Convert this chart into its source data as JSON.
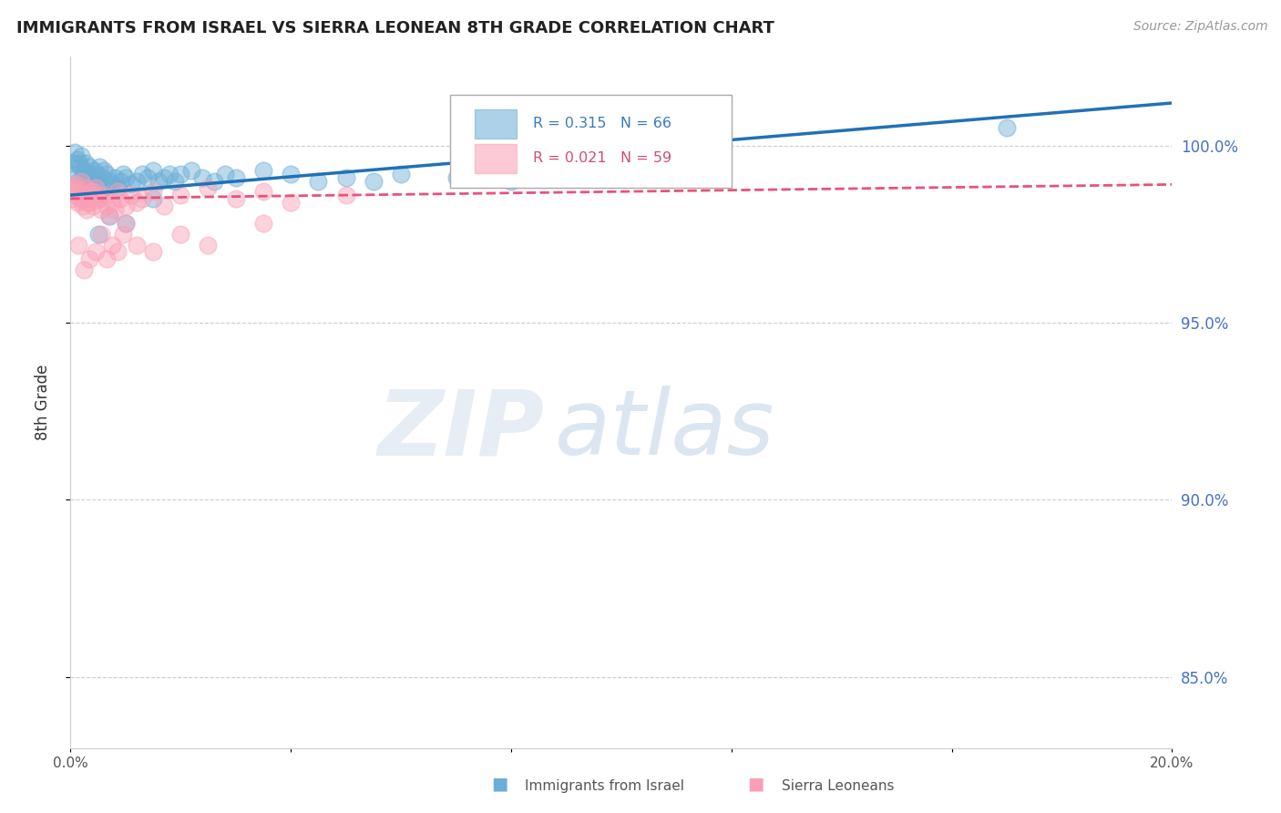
{
  "title": "IMMIGRANTS FROM ISRAEL VS SIERRA LEONEAN 8TH GRADE CORRELATION CHART",
  "source": "Source: ZipAtlas.com",
  "ylabel": "8th Grade",
  "right_yticks": [
    85.0,
    90.0,
    95.0,
    100.0
  ],
  "xlim": [
    0.0,
    20.0
  ],
  "ylim": [
    83.0,
    102.5
  ],
  "legend_blue_label": "Immigrants from Israel",
  "legend_pink_label": "Sierra Leoneans",
  "R_blue": 0.315,
  "N_blue": 66,
  "R_pink": 0.021,
  "N_pink": 59,
  "blue_color": "#6baed6",
  "pink_color": "#fa9fb5",
  "trend_blue_color": "#2171b5",
  "trend_pink_color": "#e8527a",
  "watermark_zip": "ZIP",
  "watermark_atlas": "atlas",
  "blue_scatter_x": [
    0.05,
    0.08,
    0.1,
    0.12,
    0.15,
    0.18,
    0.2,
    0.22,
    0.25,
    0.28,
    0.3,
    0.32,
    0.35,
    0.38,
    0.4,
    0.42,
    0.45,
    0.48,
    0.5,
    0.52,
    0.55,
    0.58,
    0.6,
    0.62,
    0.65,
    0.7,
    0.75,
    0.8,
    0.85,
    0.9,
    0.95,
    1.0,
    1.1,
    1.2,
    1.3,
    1.4,
    1.5,
    1.6,
    1.7,
    1.8,
    1.9,
    2.0,
    2.2,
    2.4,
    2.6,
    2.8,
    3.0,
    3.5,
    4.0,
    4.5,
    5.0,
    5.5,
    6.0,
    7.0,
    8.0,
    9.0,
    10.0,
    11.0,
    17.0,
    0.15,
    0.25,
    0.35,
    0.5,
    0.7,
    1.0,
    1.5
  ],
  "blue_scatter_y": [
    99.5,
    99.8,
    99.2,
    99.6,
    99.0,
    99.4,
    99.7,
    99.1,
    99.3,
    99.5,
    99.0,
    99.2,
    99.4,
    98.8,
    99.1,
    99.3,
    98.9,
    99.2,
    99.0,
    99.4,
    98.7,
    99.1,
    99.3,
    98.8,
    99.2,
    99.0,
    98.9,
    99.1,
    98.8,
    99.0,
    99.2,
    99.1,
    98.9,
    99.0,
    99.2,
    99.1,
    99.3,
    99.0,
    99.1,
    99.2,
    99.0,
    99.2,
    99.3,
    99.1,
    99.0,
    99.2,
    99.1,
    99.3,
    99.2,
    99.0,
    99.1,
    99.0,
    99.2,
    99.1,
    99.0,
    99.2,
    99.1,
    99.3,
    100.5,
    99.5,
    99.0,
    99.2,
    97.5,
    98.0,
    97.8,
    98.5
  ],
  "pink_scatter_x": [
    0.02,
    0.05,
    0.08,
    0.1,
    0.12,
    0.15,
    0.18,
    0.2,
    0.22,
    0.25,
    0.28,
    0.3,
    0.32,
    0.35,
    0.38,
    0.4,
    0.42,
    0.45,
    0.5,
    0.55,
    0.6,
    0.65,
    0.7,
    0.75,
    0.8,
    0.85,
    0.9,
    1.0,
    1.1,
    1.2,
    1.3,
    1.5,
    1.7,
    2.0,
    2.5,
    3.0,
    3.5,
    4.0,
    5.0,
    0.15,
    0.25,
    0.35,
    0.45,
    0.55,
    0.65,
    0.75,
    0.85,
    0.95,
    1.0,
    1.2,
    1.5,
    2.0,
    2.5,
    3.5,
    0.1,
    0.2,
    0.3,
    0.4,
    0.5
  ],
  "pink_scatter_y": [
    98.5,
    98.8,
    98.6,
    98.9,
    98.4,
    98.7,
    98.5,
    99.0,
    98.3,
    98.6,
    98.8,
    98.2,
    98.5,
    98.4,
    98.7,
    98.3,
    98.6,
    98.8,
    98.5,
    98.2,
    98.6,
    98.3,
    98.0,
    98.4,
    98.2,
    98.7,
    98.5,
    98.3,
    98.6,
    98.4,
    98.5,
    98.7,
    98.3,
    98.6,
    98.8,
    98.5,
    98.7,
    98.4,
    98.6,
    97.2,
    96.5,
    96.8,
    97.0,
    97.5,
    96.8,
    97.2,
    97.0,
    97.5,
    97.8,
    97.2,
    97.0,
    97.5,
    97.2,
    97.8,
    98.8,
    98.6,
    98.4,
    98.7,
    98.5
  ],
  "blue_trend_x0": 0.0,
  "blue_trend_y0": 98.6,
  "blue_trend_x1": 20.0,
  "blue_trend_y1": 101.2,
  "pink_trend_x0": 0.0,
  "pink_trend_y0": 98.5,
  "pink_trend_x1": 20.0,
  "pink_trend_y1": 98.9
}
